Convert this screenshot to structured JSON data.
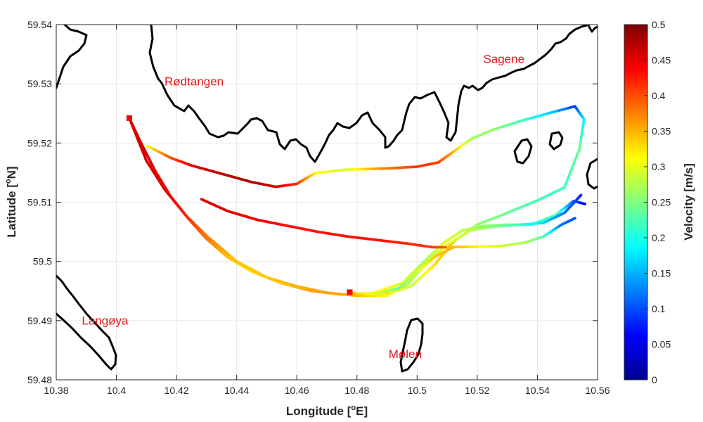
{
  "chart_data": {
    "type": "scatter",
    "xlabel": "Longitude [°E]",
    "xlabel_parts": {
      "pre": "Longitude [",
      "sup": "o",
      "post": "E]"
    },
    "ylabel": "Latitude [°N]",
    "ylabel_parts": {
      "pre": "Latitude [",
      "sup": "o",
      "post": "N]"
    },
    "xlim": [
      10.38,
      10.56
    ],
    "ylim": [
      59.48,
      59.54
    ],
    "xticks": [
      10.38,
      10.4,
      10.42,
      10.44,
      10.46,
      10.48,
      10.5,
      10.52,
      10.54,
      10.56
    ],
    "xtick_labels": [
      "10.38",
      "10.4",
      "10.42",
      "10.44",
      "10.46",
      "10.48",
      "10.5",
      "10.52",
      "10.54",
      "10.56"
    ],
    "yticks": [
      59.48,
      59.49,
      59.5,
      59.51,
      59.52,
      59.53,
      59.54
    ],
    "ytick_labels": [
      "59.48",
      "59.49",
      "59.5",
      "59.51",
      "59.52",
      "59.53",
      "59.54"
    ],
    "grid": true,
    "colorbar": {
      "label": "Velocity [m/s]",
      "range": [
        0,
        0.5
      ],
      "ticks": [
        0,
        0.05,
        0.1,
        0.15,
        0.2,
        0.25,
        0.3,
        0.35,
        0.4,
        0.45,
        0.5
      ],
      "tick_labels": [
        "0",
        "0.05",
        "0.1",
        "0.15",
        "0.2",
        "0.25",
        "0.3",
        "0.35",
        "0.4",
        "0.45",
        "0.5"
      ],
      "colormap": "jet"
    },
    "place_labels": [
      {
        "name": "Rødtangen",
        "lon": 10.416,
        "lat": 59.5297
      },
      {
        "name": "Sagene",
        "lon": 10.522,
        "lat": 59.5335
      },
      {
        "name": "Langøya",
        "lon": 10.3885,
        "lat": 59.4893
      },
      {
        "name": "Mølen",
        "lon": 10.4905,
        "lat": 59.4837
      }
    ],
    "release_markers": [
      {
        "lon": 10.4043,
        "lat": 59.5242,
        "color": "#ff0000"
      },
      {
        "lon": 10.4776,
        "lat": 59.4948,
        "color": "#ff0000"
      }
    ],
    "series": [
      {
        "points": [
          [
            10.4103,
            59.5195,
            0.31
          ],
          [
            10.418,
            59.5175,
            0.4
          ],
          [
            10.425,
            59.5162,
            0.45
          ],
          [
            10.435,
            59.5148,
            0.47
          ],
          [
            10.445,
            59.5134,
            0.48
          ],
          [
            10.453,
            59.5126,
            0.46
          ],
          [
            10.46,
            59.5131,
            0.42
          ],
          [
            10.466,
            59.5149,
            0.32
          ],
          [
            10.476,
            59.5155,
            0.29
          ],
          [
            10.49,
            59.5157,
            0.38
          ],
          [
            10.5,
            59.516,
            0.41
          ],
          [
            10.507,
            59.5167,
            0.41
          ],
          [
            10.512,
            59.5185,
            0.35
          ],
          [
            10.518,
            59.5207,
            0.27
          ],
          [
            10.525,
            59.5222,
            0.26
          ],
          [
            10.535,
            59.5238,
            0.22
          ],
          [
            10.545,
            59.5252,
            0.16
          ],
          [
            10.5525,
            59.5262,
            0.09
          ],
          [
            10.5555,
            59.524,
            0.18
          ],
          [
            10.554,
            59.519,
            0.24
          ],
          [
            10.549,
            59.5125,
            0.22
          ],
          [
            10.54,
            59.5103,
            0.22
          ],
          [
            10.53,
            59.5082,
            0.24
          ],
          [
            10.52,
            59.5062,
            0.26
          ],
          [
            10.512,
            59.5033,
            0.35
          ],
          [
            10.506,
            59.4995,
            0.33
          ],
          [
            10.498,
            59.4958,
            0.28
          ],
          [
            10.49,
            59.4945,
            0.33
          ],
          [
            10.482,
            59.4943,
            0.3
          ],
          [
            10.4776,
            59.4948,
            0.32
          ]
        ]
      },
      {
        "points": [
          [
            10.4043,
            59.5242,
            0.45
          ],
          [
            10.408,
            59.5202,
            0.46
          ],
          [
            10.413,
            59.5152,
            0.45
          ],
          [
            10.418,
            59.511,
            0.44
          ],
          [
            10.424,
            59.5072,
            0.42
          ],
          [
            10.43,
            59.5038,
            0.38
          ],
          [
            10.437,
            59.5007,
            0.34
          ],
          [
            10.445,
            59.4983,
            0.33
          ],
          [
            10.455,
            59.4963,
            0.34
          ],
          [
            10.465,
            59.495,
            0.36
          ],
          [
            10.475,
            59.4944,
            0.36
          ],
          [
            10.485,
            59.4946,
            0.32
          ],
          [
            10.495,
            59.4963,
            0.3
          ],
          [
            10.503,
            59.5003,
            0.27
          ],
          [
            10.509,
            59.5032,
            0.3
          ],
          [
            10.515,
            59.5052,
            0.28
          ],
          [
            10.522,
            59.506,
            0.26
          ],
          [
            10.53,
            59.5062,
            0.24
          ],
          [
            10.538,
            59.5062,
            0.21
          ],
          [
            10.546,
            59.5078,
            0.23
          ],
          [
            10.552,
            59.5102,
            0.12
          ],
          [
            10.5558,
            59.5097,
            0.05
          ]
        ]
      },
      {
        "points": [
          [
            10.4043,
            59.5242,
            0.45
          ],
          [
            10.41,
            59.517,
            0.46
          ],
          [
            10.416,
            59.5122,
            0.45
          ],
          [
            10.423,
            59.5078,
            0.42
          ],
          [
            10.43,
            59.5043,
            0.38
          ],
          [
            10.44,
            59.5,
            0.34
          ],
          [
            10.45,
            59.4973,
            0.34
          ],
          [
            10.46,
            59.4958,
            0.35
          ],
          [
            10.47,
            59.4947,
            0.36
          ],
          [
            10.48,
            59.4942,
            0.35
          ],
          [
            10.49,
            59.4942,
            0.31
          ],
          [
            10.497,
            59.4962,
            0.28
          ],
          [
            10.503,
            59.4998,
            0.27
          ],
          [
            10.51,
            59.5028,
            0.3
          ],
          [
            10.518,
            59.5053,
            0.28
          ],
          [
            10.526,
            59.5059,
            0.25
          ],
          [
            10.534,
            59.5062,
            0.22
          ],
          [
            10.542,
            59.5065,
            0.17
          ],
          [
            10.549,
            59.5082,
            0.12
          ],
          [
            10.5545,
            59.5112,
            0.08
          ]
        ]
      },
      {
        "points": [
          [
            10.4283,
            59.5105,
            0.45
          ],
          [
            10.437,
            59.5085,
            0.45
          ],
          [
            10.447,
            59.507,
            0.44
          ],
          [
            10.457,
            59.506,
            0.43
          ],
          [
            10.467,
            59.505,
            0.43
          ],
          [
            10.477,
            59.5042,
            0.43
          ],
          [
            10.487,
            59.5036,
            0.43
          ],
          [
            10.497,
            59.503,
            0.42
          ],
          [
            10.505,
            59.5024,
            0.41
          ],
          [
            10.5095,
            59.5024,
            0.39
          ]
        ]
      },
      {
        "points": [
          [
            10.478,
            59.4945,
            0.35
          ],
          [
            10.486,
            59.4945,
            0.3
          ],
          [
            10.494,
            59.4955,
            0.24
          ],
          [
            10.5,
            59.4982,
            0.29
          ],
          [
            10.506,
            59.5008,
            0.34
          ],
          [
            10.512,
            59.5024,
            0.35
          ],
          [
            10.52,
            59.5025,
            0.32
          ],
          [
            10.528,
            59.5026,
            0.29
          ],
          [
            10.536,
            59.5032,
            0.27
          ],
          [
            10.542,
            59.5042,
            0.23
          ],
          [
            10.548,
            59.5062,
            0.12
          ],
          [
            10.5525,
            59.5073,
            0.1
          ]
        ]
      }
    ]
  }
}
